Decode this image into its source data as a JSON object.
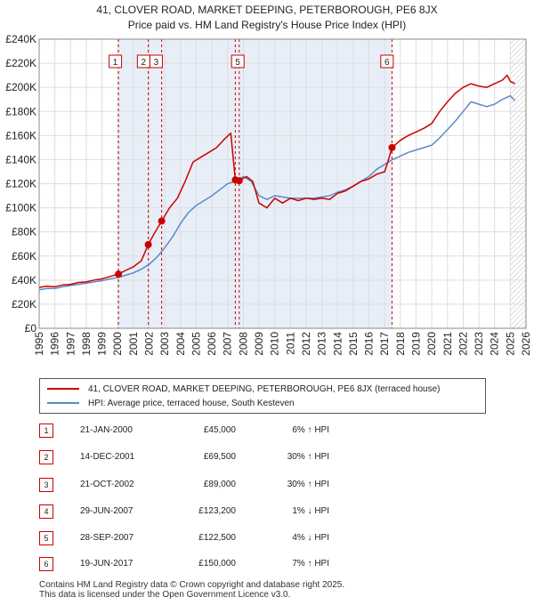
{
  "titles": {
    "line1": "41, CLOVER ROAD, MARKET DEEPING, PETERBOROUGH, PE6 8JX",
    "line2": "Price paid vs. HM Land Registry's House Price Index (HPI)"
  },
  "colors": {
    "property_line": "#cc0000",
    "hpi_line": "#5a8ac6",
    "band_fill": "#e8eef8",
    "grid": "#dddddd",
    "marker_line": "#cc0000",
    "badge_border": "#cc0000"
  },
  "chart_data": {
    "type": "line",
    "title": "Price paid vs. HM Land Registry's House Price Index (HPI)",
    "xlim": [
      1995,
      2026
    ],
    "ylim": [
      0,
      240000
    ],
    "y_ticks": [
      {
        "value": 0,
        "label": "£0"
      },
      {
        "value": 20000,
        "label": "£20K"
      },
      {
        "value": 40000,
        "label": "£40K"
      },
      {
        "value": 60000,
        "label": "£60K"
      },
      {
        "value": 80000,
        "label": "£80K"
      },
      {
        "value": 100000,
        "label": "£100K"
      },
      {
        "value": 120000,
        "label": "£120K"
      },
      {
        "value": 140000,
        "label": "£140K"
      },
      {
        "value": 160000,
        "label": "£160K"
      },
      {
        "value": 180000,
        "label": "£180K"
      },
      {
        "value": 200000,
        "label": "£200K"
      },
      {
        "value": 220000,
        "label": "£220K"
      },
      {
        "value": 240000,
        "label": "£240K"
      }
    ],
    "x_ticks": [
      "1995",
      "1996",
      "1997",
      "1998",
      "1999",
      "2000",
      "2001",
      "2002",
      "2003",
      "2004",
      "2005",
      "2006",
      "2007",
      "2008",
      "2009",
      "2010",
      "2011",
      "2012",
      "2013",
      "2014",
      "2015",
      "2016",
      "2017",
      "2018",
      "2019",
      "2020",
      "2021",
      "2022",
      "2023",
      "2024",
      "2025",
      "2026"
    ],
    "shaded_band": [
      2000.05,
      2017.47
    ],
    "projection_start": 2025.0,
    "series": [
      {
        "name": "41, CLOVER ROAD, MARKET DEEPING, PETERBOROUGH, PE6 8JX (terraced house)",
        "points": [
          [
            1995.0,
            34000
          ],
          [
            1995.5,
            35000
          ],
          [
            1996.0,
            34500
          ],
          [
            1996.5,
            36000
          ],
          [
            1997.0,
            36500
          ],
          [
            1997.5,
            38000
          ],
          [
            1998.0,
            38500
          ],
          [
            1998.5,
            40000
          ],
          [
            1999.0,
            41000
          ],
          [
            1999.5,
            43000
          ],
          [
            2000.05,
            45000
          ],
          [
            2000.5,
            48000
          ],
          [
            2001.0,
            51000
          ],
          [
            2001.5,
            56000
          ],
          [
            2001.95,
            69500
          ],
          [
            2002.3,
            78000
          ],
          [
            2002.8,
            89000
          ],
          [
            2003.3,
            100000
          ],
          [
            2003.8,
            108000
          ],
          [
            2004.3,
            122000
          ],
          [
            2004.8,
            138000
          ],
          [
            2005.3,
            142000
          ],
          [
            2005.8,
            146000
          ],
          [
            2006.3,
            150000
          ],
          [
            2006.8,
            157000
          ],
          [
            2007.2,
            162000
          ],
          [
            2007.49,
            123200
          ],
          [
            2007.74,
            122500
          ],
          [
            2008.2,
            126000
          ],
          [
            2008.6,
            122000
          ],
          [
            2009.0,
            104000
          ],
          [
            2009.5,
            100000
          ],
          [
            2010.0,
            108000
          ],
          [
            2010.5,
            104000
          ],
          [
            2011.0,
            108000
          ],
          [
            2011.5,
            106000
          ],
          [
            2012.0,
            108000
          ],
          [
            2012.5,
            107000
          ],
          [
            2013.0,
            108000
          ],
          [
            2013.5,
            107000
          ],
          [
            2014.0,
            112000
          ],
          [
            2014.5,
            114000
          ],
          [
            2015.0,
            118000
          ],
          [
            2015.5,
            122000
          ],
          [
            2016.0,
            124000
          ],
          [
            2016.5,
            128000
          ],
          [
            2017.0,
            130000
          ],
          [
            2017.2,
            138000
          ],
          [
            2017.47,
            150000
          ],
          [
            2018.0,
            156000
          ],
          [
            2018.5,
            160000
          ],
          [
            2019.0,
            163000
          ],
          [
            2019.5,
            166000
          ],
          [
            2020.0,
            170000
          ],
          [
            2020.5,
            180000
          ],
          [
            2021.0,
            188000
          ],
          [
            2021.5,
            195000
          ],
          [
            2022.0,
            200000
          ],
          [
            2022.5,
            203000
          ],
          [
            2023.0,
            201000
          ],
          [
            2023.5,
            200000
          ],
          [
            2024.0,
            203000
          ],
          [
            2024.5,
            206000
          ],
          [
            2024.8,
            210000
          ],
          [
            2025.0,
            205000
          ],
          [
            2025.3,
            203000
          ]
        ]
      },
      {
        "name": "HPI: Average price, terraced house, South Kesteven",
        "points": [
          [
            1995.0,
            32000
          ],
          [
            1995.5,
            33000
          ],
          [
            1996.0,
            33000
          ],
          [
            1996.5,
            34500
          ],
          [
            1997.0,
            35500
          ],
          [
            1997.5,
            36500
          ],
          [
            1998.0,
            37500
          ],
          [
            1998.5,
            38500
          ],
          [
            1999.0,
            39500
          ],
          [
            1999.5,
            41000
          ],
          [
            2000.0,
            42000
          ],
          [
            2000.5,
            44000
          ],
          [
            2001.0,
            46000
          ],
          [
            2001.5,
            49000
          ],
          [
            2002.0,
            53000
          ],
          [
            2002.5,
            59000
          ],
          [
            2003.0,
            67000
          ],
          [
            2003.5,
            76000
          ],
          [
            2004.0,
            87000
          ],
          [
            2004.5,
            96000
          ],
          [
            2005.0,
            102000
          ],
          [
            2005.5,
            106000
          ],
          [
            2006.0,
            110000
          ],
          [
            2006.5,
            115000
          ],
          [
            2007.0,
            120000
          ],
          [
            2007.5,
            122000
          ],
          [
            2008.0,
            126000
          ],
          [
            2008.5,
            122000
          ],
          [
            2009.0,
            110000
          ],
          [
            2009.5,
            107000
          ],
          [
            2010.0,
            110000
          ],
          [
            2010.5,
            109000
          ],
          [
            2011.0,
            108000
          ],
          [
            2011.5,
            108000
          ],
          [
            2012.0,
            108000
          ],
          [
            2012.5,
            108000
          ],
          [
            2013.0,
            109000
          ],
          [
            2013.5,
            110000
          ],
          [
            2014.0,
            113000
          ],
          [
            2014.5,
            115000
          ],
          [
            2015.0,
            118000
          ],
          [
            2015.5,
            122000
          ],
          [
            2016.0,
            126000
          ],
          [
            2016.5,
            132000
          ],
          [
            2017.0,
            136000
          ],
          [
            2017.5,
            140000
          ],
          [
            2018.0,
            143000
          ],
          [
            2018.5,
            146000
          ],
          [
            2019.0,
            148000
          ],
          [
            2019.5,
            150000
          ],
          [
            2020.0,
            152000
          ],
          [
            2020.5,
            158000
          ],
          [
            2021.0,
            165000
          ],
          [
            2021.5,
            172000
          ],
          [
            2022.0,
            180000
          ],
          [
            2022.5,
            188000
          ],
          [
            2023.0,
            186000
          ],
          [
            2023.5,
            184000
          ],
          [
            2024.0,
            186000
          ],
          [
            2024.5,
            190000
          ],
          [
            2025.0,
            193000
          ],
          [
            2025.3,
            189000
          ]
        ]
      }
    ],
    "sale_markers": [
      {
        "id": "1",
        "x": 2000.05,
        "value": 45000
      },
      {
        "id": "2",
        "x": 2001.95,
        "value": 69500
      },
      {
        "id": "3",
        "x": 2002.8,
        "value": 89000
      },
      {
        "id": "4",
        "x": 2007.49,
        "value": 123200
      },
      {
        "id": "5",
        "x": 2007.74,
        "value": 122500
      },
      {
        "id": "6",
        "x": 2017.47,
        "value": 150000
      }
    ],
    "visible_marker_labels": [
      {
        "id": "1",
        "x": 1999.85
      },
      {
        "id": "2",
        "x": 2001.65
      },
      {
        "id": "3",
        "x": 2002.45
      },
      {
        "id": "5",
        "x": 2007.65
      },
      {
        "id": "6",
        "x": 2017.15
      }
    ]
  },
  "legend": {
    "property_label": "41, CLOVER ROAD, MARKET DEEPING, PETERBOROUGH, PE6 8JX (terraced house)",
    "hpi_label": "HPI: Average price, terraced house, South Kesteven"
  },
  "transactions": [
    {
      "num": "1",
      "date": "21-JAN-2000",
      "price": "£45,000",
      "hpi": "6% ↑ HPI"
    },
    {
      "num": "2",
      "date": "14-DEC-2001",
      "price": "£69,500",
      "hpi": "30% ↑ HPI"
    },
    {
      "num": "3",
      "date": "21-OCT-2002",
      "price": "£89,000",
      "hpi": "30% ↑ HPI"
    },
    {
      "num": "4",
      "date": "29-JUN-2007",
      "price": "£123,200",
      "hpi": "1% ↓ HPI"
    },
    {
      "num": "5",
      "date": "28-SEP-2007",
      "price": "£122,500",
      "hpi": "4% ↓ HPI"
    },
    {
      "num": "6",
      "date": "19-JUN-2017",
      "price": "£150,000",
      "hpi": "7% ↑ HPI"
    }
  ],
  "footer": {
    "line1": "Contains HM Land Registry data © Crown copyright and database right 2025.",
    "line2": "This data is licensed under the Open Government Licence v3.0."
  }
}
